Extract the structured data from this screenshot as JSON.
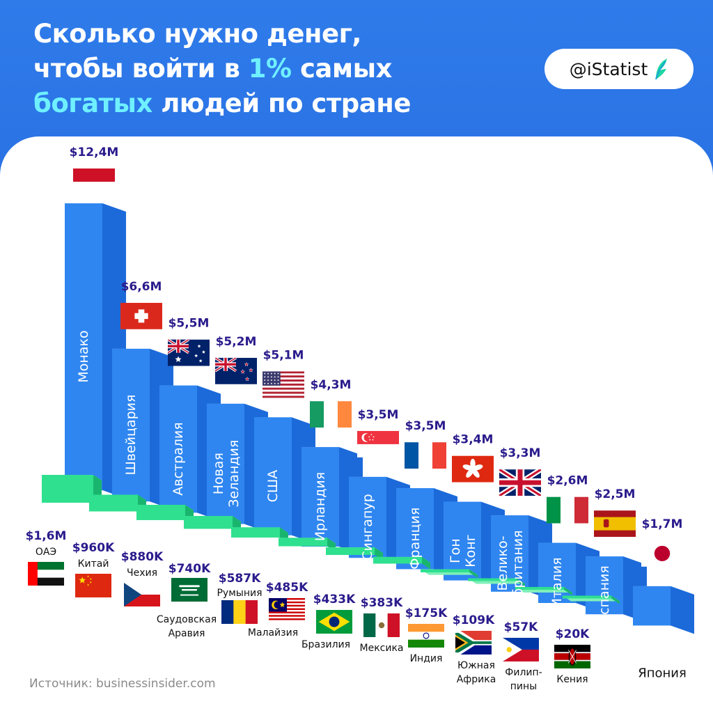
{
  "header": {
    "title_line1": "Сколько нужно денег,",
    "title_line2_pre": "чтобы войти в ",
    "title_line2_hl": "1%",
    "title_line2_post": " самых",
    "title_line3_hl": "богатых",
    "title_line3_post": " людей по стране",
    "brand": "@iStatist"
  },
  "source": "Источник: businessinsider.com",
  "colors": {
    "header_blue": "#2f7bea",
    "bar_blue": "#2f86f0",
    "bar_green": "#2fe08f",
    "highlight": "#6ff0ff",
    "value_text": "#2a1b8c"
  },
  "chart_data": {
    "type": "bar",
    "unit": "USD",
    "style": "3d-bars",
    "series": [
      {
        "color": "blue",
        "items": [
          {
            "country": "Монако",
            "label": "$12,4M",
            "value": 12.4,
            "flag": "monaco-flag"
          },
          {
            "country": "Швейцария",
            "label": "$6,6M",
            "value": 6.6,
            "flag": "switzerland-flag"
          },
          {
            "country": "Австралия",
            "label": "$5,5M",
            "value": 5.5,
            "flag": "australia-flag"
          },
          {
            "country": "Новая Зеландия",
            "label": "$5,2M",
            "value": 5.2,
            "flag": "new-zealand-flag"
          },
          {
            "country": "США",
            "label": "$5,1M",
            "value": 5.1,
            "flag": "usa-flag"
          },
          {
            "country": "Ирландия",
            "label": "$4,3M",
            "value": 4.3,
            "flag": "ireland-flag"
          },
          {
            "country": "Сингапур",
            "label": "$3,5M",
            "value": 3.5,
            "flag": "singapore-flag"
          },
          {
            "country": "Франция",
            "label": "$3,5M",
            "value": 3.5,
            "flag": "france-flag"
          },
          {
            "country": "Гон Конг",
            "label": "$3,4M",
            "value": 3.4,
            "flag": "hong-kong-flag"
          },
          {
            "country": "Велико-британия",
            "label": "$3,3M",
            "value": 3.3,
            "flag": "uk-flag"
          },
          {
            "country": "Италия",
            "label": "$2,6M",
            "value": 2.6,
            "flag": "italy-flag"
          },
          {
            "country": "Испания",
            "label": "$2,5M",
            "value": 2.5,
            "flag": "spain-flag"
          },
          {
            "country": "Япония",
            "label": "$1,7M",
            "value": 1.7,
            "flag": "japan-flag"
          }
        ]
      },
      {
        "color": "green",
        "items": [
          {
            "country": "ОАЭ",
            "label": "$1,6M",
            "value": 1.6,
            "flag": "uae-flag"
          },
          {
            "country": "Китай",
            "label": "$960K",
            "value": 0.96,
            "flag": "china-flag"
          },
          {
            "country": "Чехия",
            "label": "$880K",
            "value": 0.88,
            "flag": "czech-flag"
          },
          {
            "country": "Саудовская Аравия",
            "label": "$740K",
            "value": 0.74,
            "flag": "saudi-arabia-flag"
          },
          {
            "country": "Румыния",
            "label": "$587K",
            "value": 0.587,
            "flag": "romania-flag"
          },
          {
            "country": "Малайзия",
            "label": "$485K",
            "value": 0.485,
            "flag": "malaysia-flag"
          },
          {
            "country": "Бразилия",
            "label": "$433K",
            "value": 0.433,
            "flag": "brazil-flag"
          },
          {
            "country": "Мексика",
            "label": "$383K",
            "value": 0.383,
            "flag": "mexico-flag"
          },
          {
            "country": "Индия",
            "label": "$175K",
            "value": 0.175,
            "flag": "india-flag"
          },
          {
            "country": "Южная Африка",
            "label": "$109K",
            "value": 0.109,
            "flag": "south-africa-flag"
          },
          {
            "country": "Филип-пины",
            "label": "$57K",
            "value": 0.057,
            "flag": "philippines-flag"
          },
          {
            "country": "Кения",
            "label": "$20K",
            "value": 0.02,
            "flag": "kenya-flag"
          }
        ]
      }
    ]
  }
}
